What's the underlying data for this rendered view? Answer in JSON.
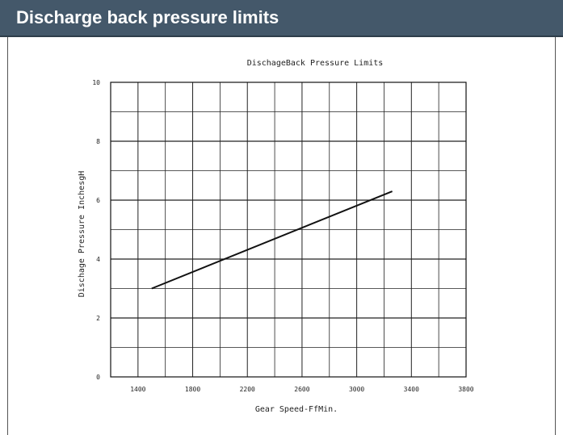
{
  "header": {
    "title": "Discharge back pressure limits"
  },
  "chart_data": {
    "type": "line",
    "title": "DischageBack Pressure Limits",
    "xlabel": "Gear Speed-FfMin.",
    "ylabel": "Dischage Pressure InchesgH",
    "xlim": [
      1200,
      3800
    ],
    "ylim": [
      0,
      10
    ],
    "x_ticks": [
      1400,
      1800,
      2200,
      2600,
      3000,
      3400,
      3800
    ],
    "x_tick_labels": [
      "1400",
      "1800",
      "2200",
      "2600",
      "3000",
      "3400",
      "3800"
    ],
    "y_ticks": [
      0,
      2,
      4,
      6,
      8,
      10
    ],
    "y_tick_labels": [
      "0",
      "2",
      "4",
      "6",
      "8",
      "10"
    ],
    "grid": true,
    "series": [
      {
        "x": [
          1500,
          3260
        ],
        "y": [
          3.0,
          6.3
        ]
      }
    ],
    "colors": {
      "line": "#111111",
      "grid": "#222222",
      "header_bg": "#44586a"
    }
  }
}
